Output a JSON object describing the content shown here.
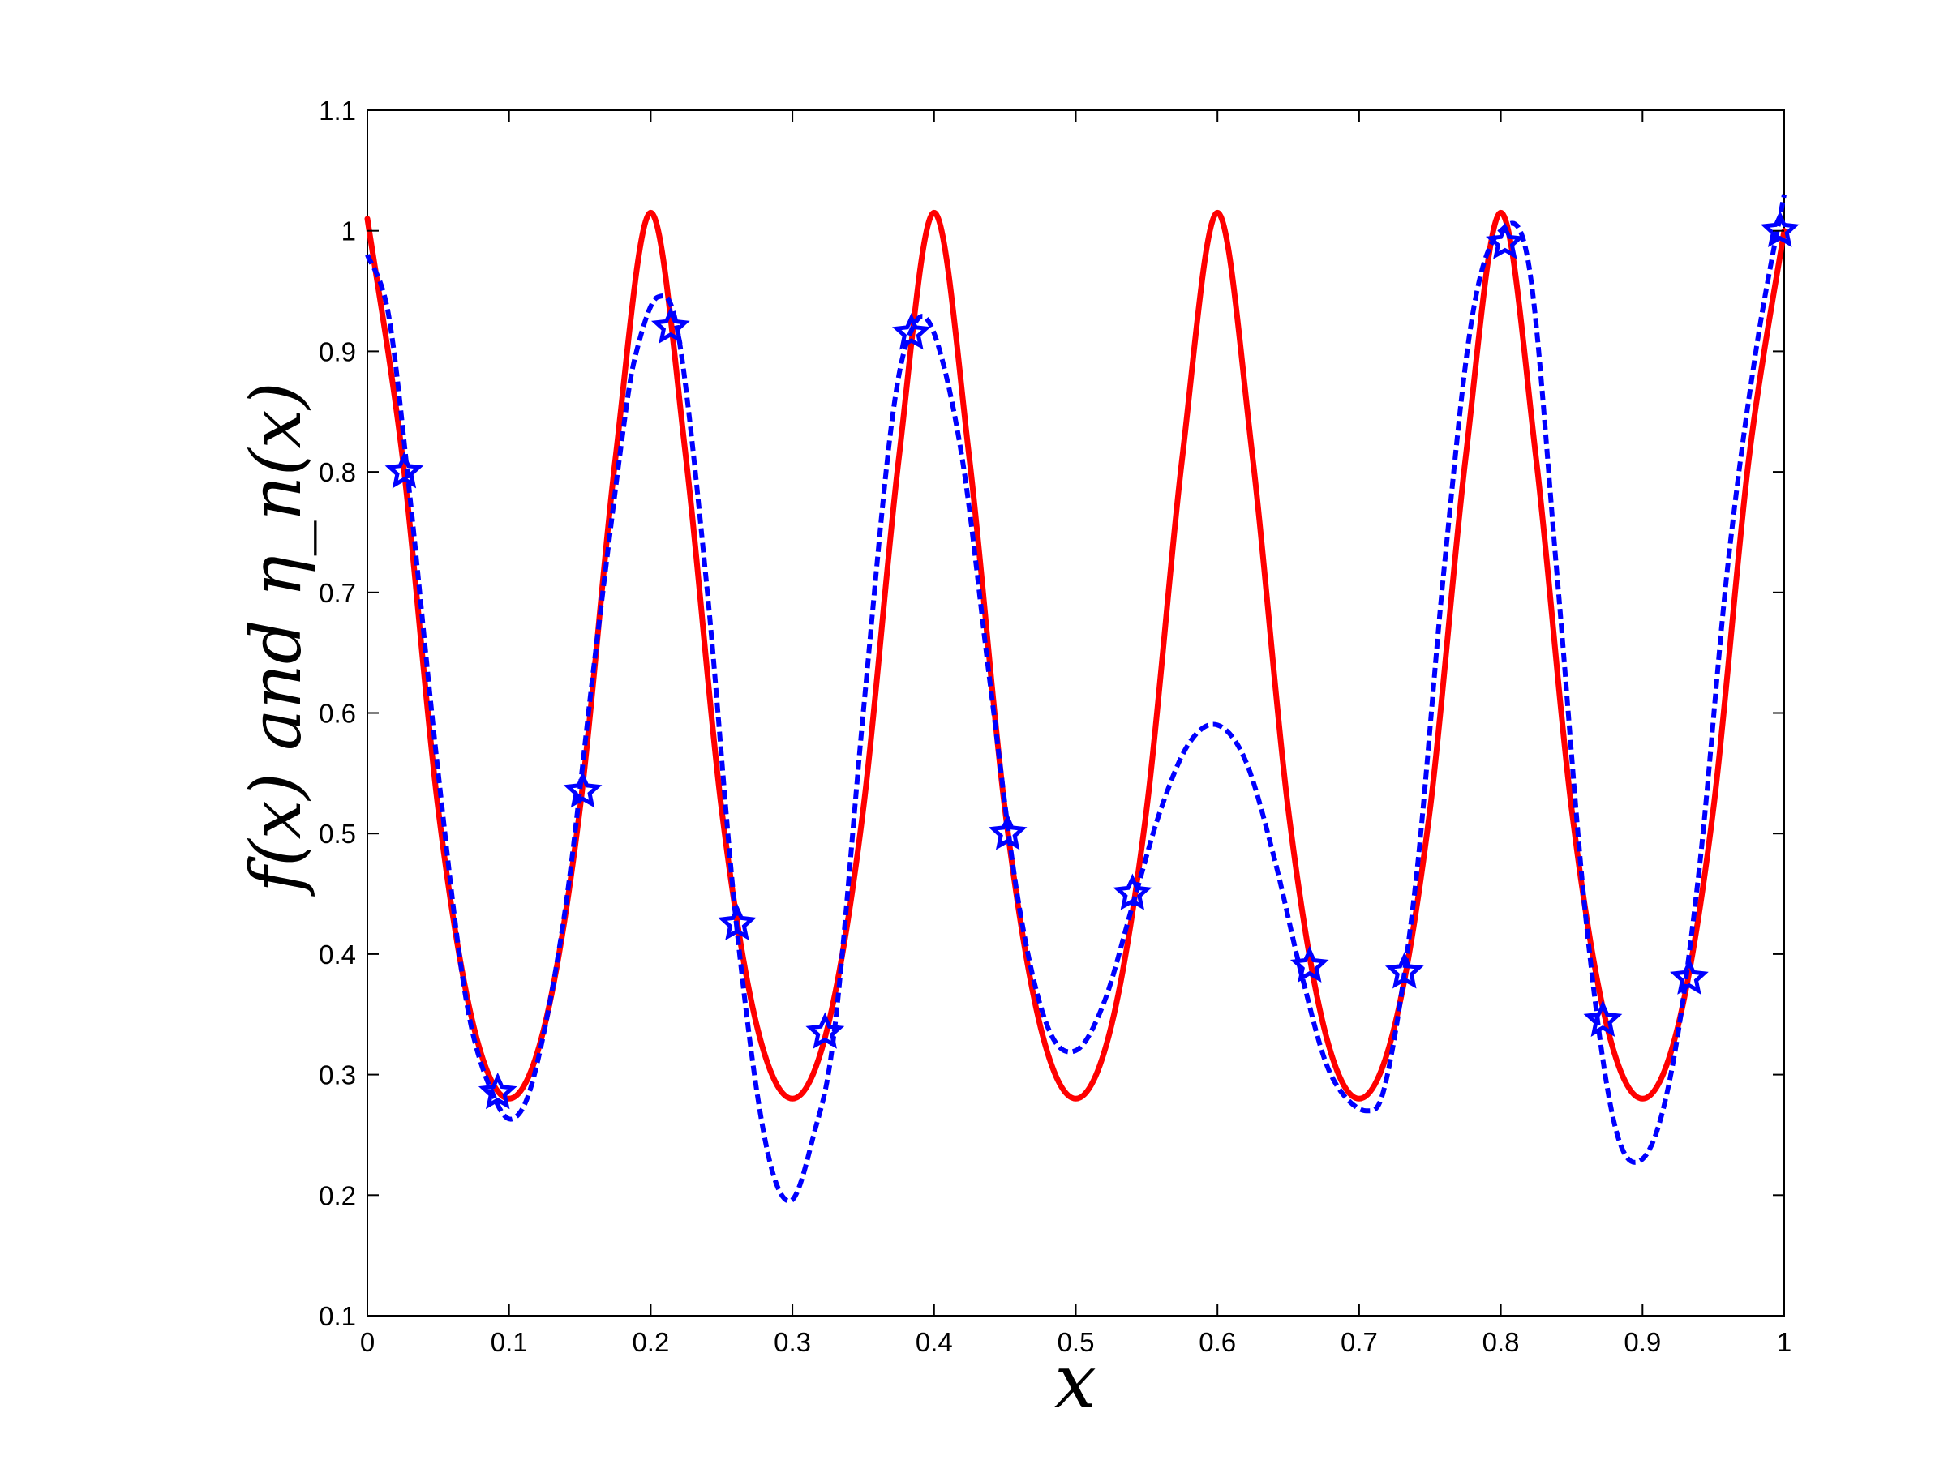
{
  "chart_data": {
    "type": "line",
    "xlabel": "x",
    "ylabel": "f(x) and η_n(x)",
    "xlim": [
      0,
      1
    ],
    "ylim": [
      0.1,
      1.1
    ],
    "xticks": [
      0,
      0.1,
      0.2,
      0.3,
      0.4,
      0.5,
      0.6,
      0.7,
      0.8,
      0.9,
      1
    ],
    "xtick_labels": [
      "0",
      "0.1",
      "0.2",
      "0.3",
      "0.4",
      "0.5",
      "0.6",
      "0.7",
      "0.8",
      "0.9",
      "1"
    ],
    "yticks": [
      0.1,
      0.2,
      0.3,
      0.4,
      0.5,
      0.6,
      0.7,
      0.8,
      0.9,
      1,
      1.1
    ],
    "ytick_labels": [
      "0.1",
      "0.2",
      "0.3",
      "0.4",
      "0.5",
      "0.6",
      "0.7",
      "0.8",
      "0.9",
      "1",
      "1.1"
    ],
    "grid": false,
    "legend": "none",
    "series": [
      {
        "color": "#ff0000",
        "style": "solid",
        "x": [
          0,
          0.025,
          0.05,
          0.075,
          0.1,
          0.125,
          0.15,
          0.175,
          0.2,
          0.225,
          0.25,
          0.275,
          0.3,
          0.325,
          0.35,
          0.375,
          0.4,
          0.425,
          0.45,
          0.475,
          0.5,
          0.525,
          0.55,
          0.575,
          0.6,
          0.625,
          0.65,
          0.675,
          0.7,
          0.725,
          0.75,
          0.775,
          0.8,
          0.825,
          0.85,
          0.875,
          0.9,
          0.925,
          0.95,
          0.975,
          1
        ],
        "y": [
          1.01,
          0.81,
          0.52,
          0.34,
          0.28,
          0.34,
          0.52,
          0.81,
          1.015,
          0.81,
          0.52,
          0.34,
          0.28,
          0.34,
          0.52,
          0.81,
          1.015,
          0.81,
          0.52,
          0.34,
          0.28,
          0.34,
          0.52,
          0.81,
          1.015,
          0.81,
          0.52,
          0.34,
          0.28,
          0.34,
          0.52,
          0.81,
          1.015,
          0.81,
          0.52,
          0.34,
          0.28,
          0.34,
          0.52,
          0.81,
          1.0
        ]
      },
      {
        "color": "#0000ff",
        "style": "dashed",
        "x": [
          0,
          0.015,
          0.03,
          0.05,
          0.07,
          0.09,
          0.105,
          0.12,
          0.14,
          0.16,
          0.18,
          0.19,
          0.205,
          0.22,
          0.24,
          0.26,
          0.28,
          0.298,
          0.315,
          0.33,
          0.35,
          0.37,
          0.385,
          0.4,
          0.42,
          0.44,
          0.46,
          0.48,
          0.5,
          0.52,
          0.54,
          0.56,
          0.58,
          0.6,
          0.62,
          0.64,
          0.66,
          0.68,
          0.705,
          0.72,
          0.74,
          0.76,
          0.78,
          0.8,
          0.82,
          0.84,
          0.86,
          0.88,
          0.9,
          0.92,
          0.94,
          0.96,
          0.98,
          1.0
        ],
        "y": [
          0.98,
          0.93,
          0.78,
          0.55,
          0.36,
          0.28,
          0.265,
          0.31,
          0.44,
          0.64,
          0.83,
          0.9,
          0.945,
          0.91,
          0.7,
          0.43,
          0.25,
          0.195,
          0.25,
          0.34,
          0.6,
          0.84,
          0.92,
          0.915,
          0.81,
          0.62,
          0.44,
          0.34,
          0.32,
          0.36,
          0.44,
          0.52,
          0.575,
          0.59,
          0.56,
          0.48,
          0.38,
          0.3,
          0.27,
          0.3,
          0.46,
          0.72,
          0.93,
          1.0,
          0.97,
          0.71,
          0.43,
          0.26,
          0.23,
          0.3,
          0.47,
          0.72,
          0.9,
          1.03
        ]
      }
    ],
    "markers": {
      "color": "#0000ff",
      "shape": "star",
      "x": [
        0.026,
        0.092,
        0.152,
        0.214,
        0.261,
        0.323,
        0.384,
        0.452,
        0.54,
        0.665,
        0.732,
        0.803,
        0.872,
        0.933,
        0.997
      ],
      "y": [
        0.8,
        0.285,
        0.535,
        0.92,
        0.425,
        0.335,
        0.915,
        0.5,
        0.45,
        0.39,
        0.385,
        0.99,
        0.345,
        0.38,
        1.0
      ]
    }
  }
}
